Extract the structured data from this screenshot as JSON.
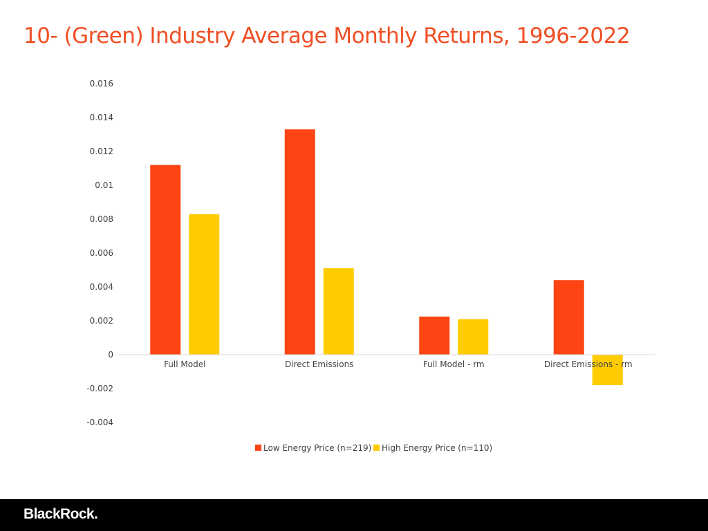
{
  "slide": {
    "title": "10- (Green) Industry Average Monthly Returns, 1996-2022"
  },
  "footer": {
    "brand": "BlackRock."
  },
  "colors": {
    "title": "#f04e23",
    "series_low": "#fc4513",
    "series_high": "#ffcc00",
    "footer_bg": "#000000"
  },
  "chart_data": {
    "type": "bar",
    "title": "",
    "xlabel": "",
    "ylabel": "",
    "categories": [
      "Full Model",
      "Direct Emissions",
      "Full Model - rm",
      "Direct Emissions - rm"
    ],
    "series": [
      {
        "name": "Low Energy Price (n=219)",
        "color": "#fc4513",
        "values": [
          0.0112,
          0.0133,
          0.00225,
          0.0044
        ]
      },
      {
        "name": "High Energy Price (n=110)",
        "color": "#ffcc00",
        "values": [
          0.0083,
          0.0051,
          0.0021,
          -0.0018
        ]
      }
    ],
    "ylim": [
      -0.004,
      0.016
    ],
    "yticks": [
      "0.016",
      "0.014",
      "0.012",
      "0.01",
      "0.008",
      "0.006",
      "0.004",
      "0.002",
      "0",
      "-0.002",
      "-0.004"
    ],
    "grid": false,
    "legend": "bottom-center"
  }
}
